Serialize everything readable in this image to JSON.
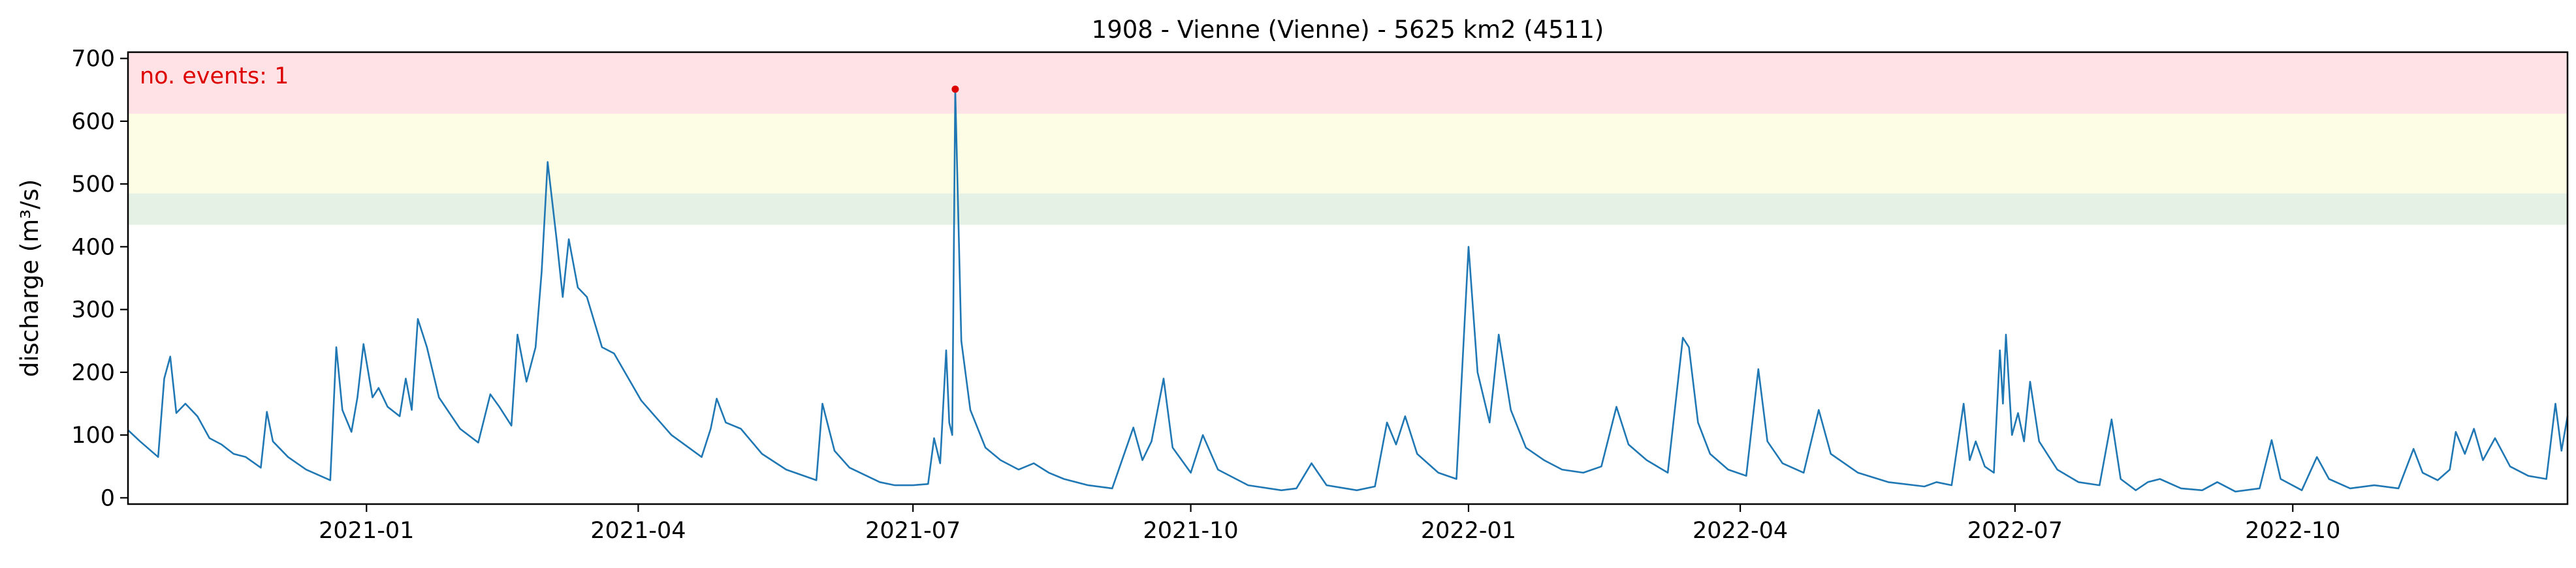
{
  "chart_data": {
    "type": "line",
    "title": "1908 - Vienne (Vienne) - 5625 km2 (4511)",
    "xlabel": "",
    "ylabel": "discharge (m³/s)",
    "x_range": [
      "2020-10-14",
      "2022-12-31"
    ],
    "ylim": [
      -10,
      710
    ],
    "yticks": [
      0,
      100,
      200,
      300,
      400,
      500,
      600,
      700
    ],
    "xticks": [
      {
        "date": "2021-01-01",
        "label": "2021-01"
      },
      {
        "date": "2021-04-01",
        "label": "2021-04"
      },
      {
        "date": "2021-07-01",
        "label": "2021-07"
      },
      {
        "date": "2021-10-01",
        "label": "2021-10"
      },
      {
        "date": "2022-01-01",
        "label": "2022-01"
      },
      {
        "date": "2022-04-01",
        "label": "2022-04"
      },
      {
        "date": "2022-07-01",
        "label": "2022-07"
      },
      {
        "date": "2022-10-01",
        "label": "2022-10"
      }
    ],
    "grid": false,
    "threshold_bands": [
      {
        "from": 435,
        "to": 485,
        "color": "#e5f1e5"
      },
      {
        "from": 485,
        "to": 612,
        "color": "#fdfde5"
      },
      {
        "from": 612,
        "to": 710,
        "color": "#ffe2e5"
      }
    ],
    "annotation": {
      "text": "no. events: 1",
      "color": "#dd0000"
    },
    "event_points": [
      {
        "date": "2021-07-15",
        "value": 651
      }
    ],
    "series": [
      {
        "color": "#1f77b4",
        "points": [
          [
            "2020-10-14",
            108
          ],
          [
            "2020-10-18",
            90
          ],
          [
            "2020-10-24",
            65
          ],
          [
            "2020-10-26",
            190
          ],
          [
            "2020-10-28",
            225
          ],
          [
            "2020-10-30",
            135
          ],
          [
            "2020-11-02",
            150
          ],
          [
            "2020-11-06",
            130
          ],
          [
            "2020-11-10",
            95
          ],
          [
            "2020-11-14",
            85
          ],
          [
            "2020-11-18",
            70
          ],
          [
            "2020-11-22",
            65
          ],
          [
            "2020-11-27",
            48
          ],
          [
            "2020-11-29",
            137
          ],
          [
            "2020-12-01",
            90
          ],
          [
            "2020-12-06",
            65
          ],
          [
            "2020-12-12",
            45
          ],
          [
            "2020-12-20",
            28
          ],
          [
            "2020-12-22",
            240
          ],
          [
            "2020-12-24",
            140
          ],
          [
            "2020-12-27",
            105
          ],
          [
            "2020-12-29",
            160
          ],
          [
            "2020-12-31",
            245
          ],
          [
            "2021-01-03",
            160
          ],
          [
            "2021-01-05",
            175
          ],
          [
            "2021-01-08",
            145
          ],
          [
            "2021-01-12",
            130
          ],
          [
            "2021-01-14",
            190
          ],
          [
            "2021-01-16",
            140
          ],
          [
            "2021-01-18",
            285
          ],
          [
            "2021-01-21",
            240
          ],
          [
            "2021-01-25",
            160
          ],
          [
            "2021-02-01",
            110
          ],
          [
            "2021-02-07",
            88
          ],
          [
            "2021-02-11",
            165
          ],
          [
            "2021-02-14",
            145
          ],
          [
            "2021-02-18",
            115
          ],
          [
            "2021-02-20",
            260
          ],
          [
            "2021-02-23",
            185
          ],
          [
            "2021-02-26",
            240
          ],
          [
            "2021-02-28",
            360
          ],
          [
            "2021-03-02",
            535
          ],
          [
            "2021-03-05",
            410
          ],
          [
            "2021-03-07",
            320
          ],
          [
            "2021-03-09",
            412
          ],
          [
            "2021-03-12",
            335
          ],
          [
            "2021-03-15",
            320
          ],
          [
            "2021-03-20",
            240
          ],
          [
            "2021-03-24",
            230
          ],
          [
            "2021-04-02",
            155
          ],
          [
            "2021-04-12",
            100
          ],
          [
            "2021-04-22",
            65
          ],
          [
            "2021-04-25",
            110
          ],
          [
            "2021-04-27",
            158
          ],
          [
            "2021-04-30",
            120
          ],
          [
            "2021-05-05",
            110
          ],
          [
            "2021-05-12",
            70
          ],
          [
            "2021-05-20",
            45
          ],
          [
            "2021-05-30",
            28
          ],
          [
            "2021-06-01",
            150
          ],
          [
            "2021-06-05",
            75
          ],
          [
            "2021-06-10",
            48
          ],
          [
            "2021-06-20",
            25
          ],
          [
            "2021-06-25",
            20
          ],
          [
            "2021-07-01",
            20
          ],
          [
            "2021-07-06",
            22
          ],
          [
            "2021-07-08",
            95
          ],
          [
            "2021-07-10",
            55
          ],
          [
            "2021-07-12",
            235
          ],
          [
            "2021-07-13",
            120
          ],
          [
            "2021-07-14",
            100
          ],
          [
            "2021-07-15",
            651
          ],
          [
            "2021-07-17",
            250
          ],
          [
            "2021-07-20",
            140
          ],
          [
            "2021-07-25",
            80
          ],
          [
            "2021-07-30",
            60
          ],
          [
            "2021-08-05",
            45
          ],
          [
            "2021-08-10",
            55
          ],
          [
            "2021-08-15",
            40
          ],
          [
            "2021-08-20",
            30
          ],
          [
            "2021-08-28",
            20
          ],
          [
            "2021-09-05",
            15
          ],
          [
            "2021-09-12",
            112
          ],
          [
            "2021-09-15",
            60
          ],
          [
            "2021-09-18",
            90
          ],
          [
            "2021-09-22",
            190
          ],
          [
            "2021-09-25",
            80
          ],
          [
            "2021-10-01",
            40
          ],
          [
            "2021-10-05",
            100
          ],
          [
            "2021-10-10",
            45
          ],
          [
            "2021-10-20",
            20
          ],
          [
            "2021-10-31",
            12
          ],
          [
            "2021-11-05",
            15
          ],
          [
            "2021-11-10",
            55
          ],
          [
            "2021-11-15",
            20
          ],
          [
            "2021-11-25",
            12
          ],
          [
            "2021-12-01",
            18
          ],
          [
            "2021-12-05",
            120
          ],
          [
            "2021-12-08",
            85
          ],
          [
            "2021-12-11",
            130
          ],
          [
            "2021-12-15",
            70
          ],
          [
            "2021-12-22",
            40
          ],
          [
            "2021-12-28",
            30
          ],
          [
            "2022-01-01",
            400
          ],
          [
            "2022-01-04",
            200
          ],
          [
            "2022-01-08",
            120
          ],
          [
            "2022-01-11",
            260
          ],
          [
            "2022-01-15",
            140
          ],
          [
            "2022-01-20",
            80
          ],
          [
            "2022-01-26",
            60
          ],
          [
            "2022-02-01",
            45
          ],
          [
            "2022-02-08",
            40
          ],
          [
            "2022-02-14",
            50
          ],
          [
            "2022-02-19",
            145
          ],
          [
            "2022-02-23",
            85
          ],
          [
            "2022-03-01",
            60
          ],
          [
            "2022-03-08",
            40
          ],
          [
            "2022-03-13",
            255
          ],
          [
            "2022-03-15",
            240
          ],
          [
            "2022-03-18",
            120
          ],
          [
            "2022-03-22",
            70
          ],
          [
            "2022-03-28",
            45
          ],
          [
            "2022-04-03",
            35
          ],
          [
            "2022-04-07",
            205
          ],
          [
            "2022-04-10",
            90
          ],
          [
            "2022-04-15",
            55
          ],
          [
            "2022-04-22",
            40
          ],
          [
            "2022-04-27",
            140
          ],
          [
            "2022-05-01",
            70
          ],
          [
            "2022-05-10",
            40
          ],
          [
            "2022-05-20",
            25
          ],
          [
            "2022-06-01",
            18
          ],
          [
            "2022-06-05",
            25
          ],
          [
            "2022-06-10",
            20
          ],
          [
            "2022-06-14",
            150
          ],
          [
            "2022-06-16",
            60
          ],
          [
            "2022-06-18",
            90
          ],
          [
            "2022-06-21",
            50
          ],
          [
            "2022-06-24",
            40
          ],
          [
            "2022-06-26",
            235
          ],
          [
            "2022-06-27",
            150
          ],
          [
            "2022-06-28",
            260
          ],
          [
            "2022-06-30",
            100
          ],
          [
            "2022-07-02",
            135
          ],
          [
            "2022-07-04",
            90
          ],
          [
            "2022-07-06",
            185
          ],
          [
            "2022-07-09",
            90
          ],
          [
            "2022-07-15",
            45
          ],
          [
            "2022-07-22",
            25
          ],
          [
            "2022-07-29",
            20
          ],
          [
            "2022-08-02",
            125
          ],
          [
            "2022-08-05",
            30
          ],
          [
            "2022-08-10",
            12
          ],
          [
            "2022-08-14",
            25
          ],
          [
            "2022-08-18",
            30
          ],
          [
            "2022-08-25",
            15
          ],
          [
            "2022-09-01",
            12
          ],
          [
            "2022-09-06",
            25
          ],
          [
            "2022-09-12",
            10
          ],
          [
            "2022-09-20",
            15
          ],
          [
            "2022-09-24",
            92
          ],
          [
            "2022-09-27",
            30
          ],
          [
            "2022-10-04",
            12
          ],
          [
            "2022-10-09",
            65
          ],
          [
            "2022-10-13",
            30
          ],
          [
            "2022-10-20",
            15
          ],
          [
            "2022-10-28",
            20
          ],
          [
            "2022-11-05",
            15
          ],
          [
            "2022-11-10",
            78
          ],
          [
            "2022-11-13",
            40
          ],
          [
            "2022-11-18",
            28
          ],
          [
            "2022-11-22",
            45
          ],
          [
            "2022-11-24",
            105
          ],
          [
            "2022-11-27",
            70
          ],
          [
            "2022-11-30",
            110
          ],
          [
            "2022-12-03",
            60
          ],
          [
            "2022-12-07",
            95
          ],
          [
            "2022-12-12",
            50
          ],
          [
            "2022-12-18",
            35
          ],
          [
            "2022-12-24",
            30
          ],
          [
            "2022-12-27",
            150
          ],
          [
            "2022-12-29",
            75
          ],
          [
            "2022-12-31",
            130
          ]
        ]
      }
    ]
  }
}
